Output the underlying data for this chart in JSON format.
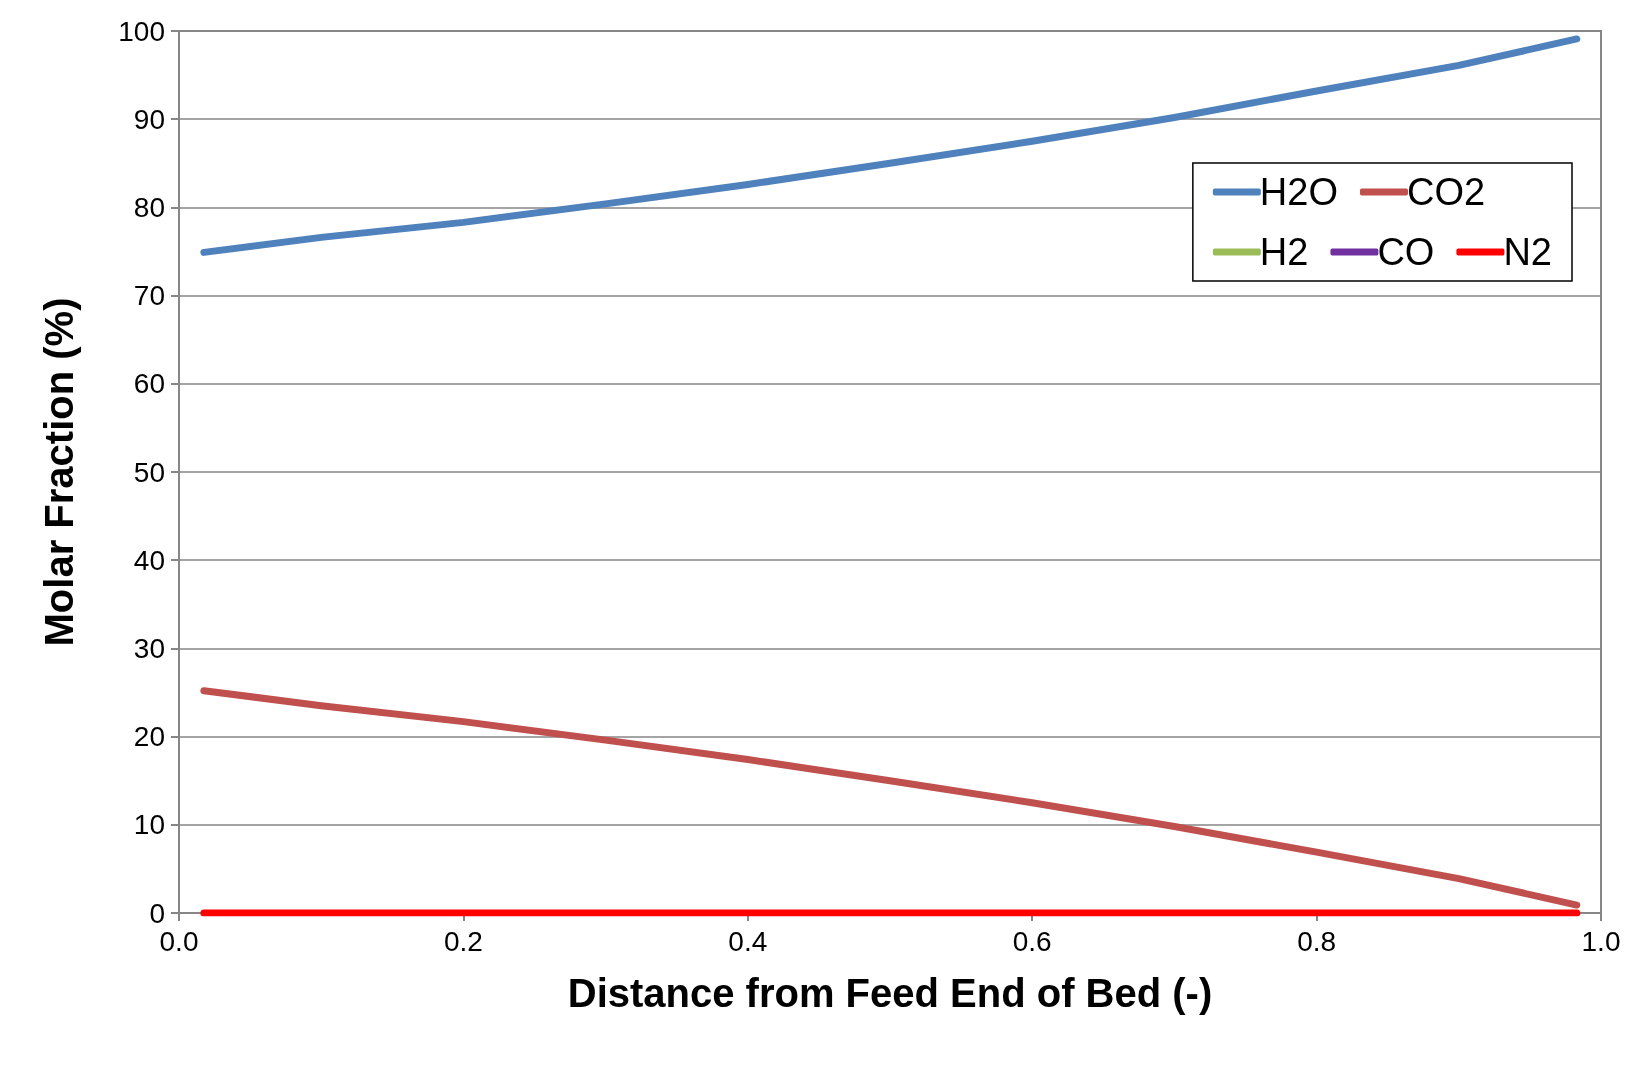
{
  "chart_data": {
    "type": "line",
    "xlabel": "Distance from Feed End of Bed (-)",
    "ylabel": "Molar Fraction (%)",
    "x": [
      0.0175,
      0.1,
      0.2,
      0.3,
      0.4,
      0.5,
      0.6,
      0.7,
      0.8,
      0.9,
      0.983
    ],
    "series": [
      {
        "name": "H2O",
        "color": "#4f81bd",
        "values": [
          74.9,
          76.6,
          78.3,
          80.4,
          82.6,
          85.0,
          87.5,
          90.2,
          93.2,
          96.1,
          99.1
        ]
      },
      {
        "name": "CO2",
        "color": "#c0504d",
        "values": [
          25.2,
          23.5,
          21.7,
          19.6,
          17.4,
          15.0,
          12.5,
          9.8,
          6.9,
          3.9,
          0.9
        ]
      },
      {
        "name": "H2",
        "color": "#9bbb59",
        "values": [
          null,
          null,
          null,
          null,
          null,
          null,
          null,
          null,
          null,
          null,
          null
        ]
      },
      {
        "name": "CO",
        "color": "#7030a0",
        "values": [
          null,
          null,
          null,
          null,
          null,
          null,
          null,
          null,
          null,
          null,
          null
        ]
      },
      {
        "name": "N2",
        "color": "#ff0000",
        "values": [
          0,
          0,
          0,
          0,
          0,
          0,
          0,
          0,
          0,
          0,
          0
        ]
      }
    ],
    "xlim": [
      0,
      1
    ],
    "xticks": [
      {
        "value": 0,
        "label": "0.0"
      },
      {
        "value": 0.2,
        "label": "0.2"
      },
      {
        "value": 0.4,
        "label": "0.4"
      },
      {
        "value": 0.6,
        "label": "0.6"
      },
      {
        "value": 0.8,
        "label": "0.8"
      },
      {
        "value": 1,
        "label": "1.0"
      }
    ],
    "ylim": [
      0,
      100
    ],
    "yticks": [
      0,
      10,
      20,
      30,
      40,
      50,
      60,
      70,
      80,
      90,
      100
    ],
    "grid": "y",
    "legend": "top right",
    "marker": "none",
    "line_style": "solid"
  }
}
